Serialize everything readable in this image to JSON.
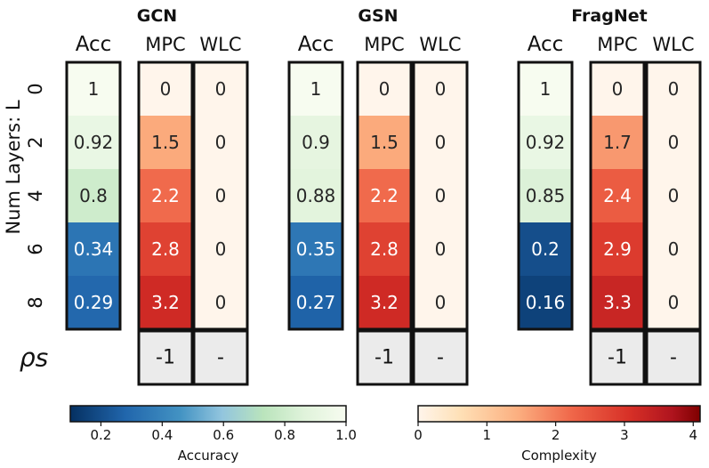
{
  "chart_data": {
    "type": "heatmap",
    "row_axis_label": "Num Layers: L",
    "row_labels": [
      "0",
      "2",
      "4",
      "6",
      "8"
    ],
    "column_labels": [
      "Acc",
      "MPC",
      "WLC"
    ],
    "rho_label": "ρs",
    "panels": [
      {
        "title": "GCN",
        "acc": [
          1,
          0.92,
          0.8,
          0.34,
          0.29
        ],
        "acc_labels": [
          "1",
          "0.92",
          "0.8",
          "0.34",
          "0.29"
        ],
        "mpc": [
          0,
          1.5,
          2.2,
          2.8,
          3.2
        ],
        "mpc_labels": [
          "0",
          "1.5",
          "2.2",
          "2.8",
          "3.2"
        ],
        "wlc": [
          0,
          0,
          0,
          0,
          0
        ],
        "wlc_labels": [
          "0",
          "0",
          "0",
          "0",
          "0"
        ],
        "rho_mpc": "-1",
        "rho_wlc": "-"
      },
      {
        "title": "GSN",
        "acc": [
          1,
          0.9,
          0.88,
          0.35,
          0.27
        ],
        "acc_labels": [
          "1",
          "0.9",
          "0.88",
          "0.35",
          "0.27"
        ],
        "mpc": [
          0,
          1.5,
          2.2,
          2.8,
          3.2
        ],
        "mpc_labels": [
          "0",
          "1.5",
          "2.2",
          "2.8",
          "3.2"
        ],
        "wlc": [
          0,
          0,
          0,
          0,
          0
        ],
        "wlc_labels": [
          "0",
          "0",
          "0",
          "0",
          "0"
        ],
        "rho_mpc": "-1",
        "rho_wlc": "-"
      },
      {
        "title": "FragNet",
        "acc": [
          1,
          0.92,
          0.85,
          0.2,
          0.16
        ],
        "acc_labels": [
          "1",
          "0.92",
          "0.85",
          "0.2",
          "0.16"
        ],
        "mpc": [
          0,
          1.7,
          2.4,
          2.9,
          3.3
        ],
        "mpc_labels": [
          "0",
          "1.7",
          "2.4",
          "2.9",
          "3.3"
        ],
        "wlc": [
          0,
          0,
          0,
          0,
          0
        ],
        "wlc_labels": [
          "0",
          "0",
          "0",
          "0",
          "0"
        ],
        "rho_mpc": "-1",
        "rho_wlc": "-"
      }
    ],
    "colorbars": {
      "accuracy": {
        "label": "Accuracy",
        "range": [
          0.1,
          1.0
        ],
        "ticks": [
          0.2,
          0.4,
          0.6,
          0.8,
          1.0
        ],
        "tick_labels": [
          "0.2",
          "0.4",
          "0.6",
          "0.8",
          "1.0"
        ],
        "colormap": "RdBu-high-half"
      },
      "complexity": {
        "label": "Complexity",
        "range": [
          0,
          4.1
        ],
        "ticks": [
          0,
          1,
          2,
          3,
          4
        ],
        "tick_labels": [
          "0",
          "1",
          "2",
          "3",
          "4"
        ],
        "colormap": "OrRd-Reds"
      }
    }
  }
}
